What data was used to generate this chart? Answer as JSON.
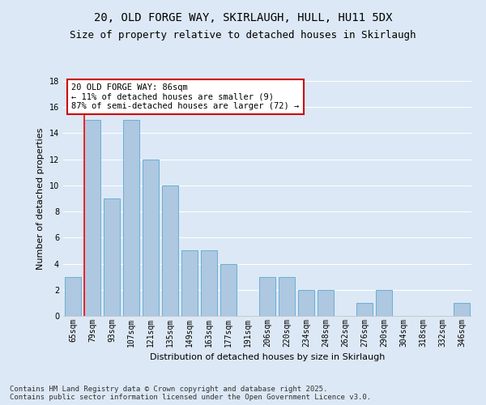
{
  "title": "20, OLD FORGE WAY, SKIRLAUGH, HULL, HU11 5DX",
  "subtitle": "Size of property relative to detached houses in Skirlaugh",
  "xlabel": "Distribution of detached houses by size in Skirlaugh",
  "ylabel": "Number of detached properties",
  "categories": [
    "65sqm",
    "79sqm",
    "93sqm",
    "107sqm",
    "121sqm",
    "135sqm",
    "149sqm",
    "163sqm",
    "177sqm",
    "191sqm",
    "206sqm",
    "220sqm",
    "234sqm",
    "248sqm",
    "262sqm",
    "276sqm",
    "290sqm",
    "304sqm",
    "318sqm",
    "332sqm",
    "346sqm"
  ],
  "values": [
    3,
    15,
    9,
    15,
    12,
    10,
    5,
    5,
    4,
    0,
    3,
    3,
    2,
    2,
    0,
    1,
    2,
    0,
    0,
    0,
    1
  ],
  "bar_color": "#adc8e0",
  "bar_edge_color": "#6aaed6",
  "background_color": "#dce8f5",
  "grid_color": "#ffffff",
  "red_line_x": 1,
  "annotation_text": "20 OLD FORGE WAY: 86sqm\n← 11% of detached houses are smaller (9)\n87% of semi-detached houses are larger (72) →",
  "annotation_box_color": "#ffffff",
  "annotation_box_edge_color": "#cc0000",
  "ylim": [
    0,
    18
  ],
  "yticks": [
    0,
    2,
    4,
    6,
    8,
    10,
    12,
    14,
    16,
    18
  ],
  "footer_text": "Contains HM Land Registry data © Crown copyright and database right 2025.\nContains public sector information licensed under the Open Government Licence v3.0.",
  "title_fontsize": 10,
  "subtitle_fontsize": 9,
  "axis_label_fontsize": 8,
  "tick_fontsize": 7,
  "annotation_fontsize": 7.5,
  "footer_fontsize": 6.5
}
